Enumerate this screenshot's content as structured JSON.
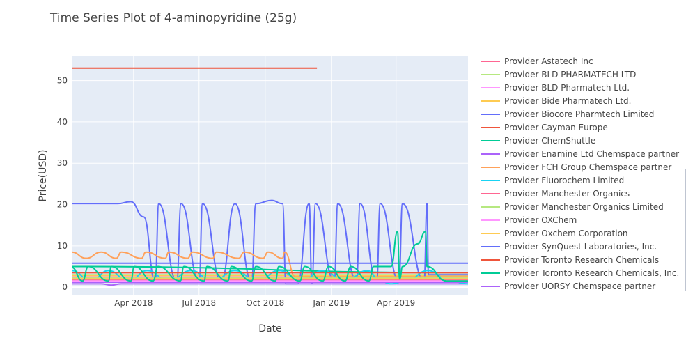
{
  "chart_data": {
    "type": "line",
    "title": "Time Series Plot of 4-aminopyridine (25g)",
    "xlabel": "Date",
    "ylabel": "Price(USD)",
    "x_range": [
      "2018-01-05",
      "2019-07-10"
    ],
    "ylim": [
      -2,
      56
    ],
    "x_ticks": [
      {
        "date": "2018-04-01",
        "label": "Apr 2018"
      },
      {
        "date": "2018-07-01",
        "label": "Jul 2018"
      },
      {
        "date": "2018-10-01",
        "label": "Oct 2018"
      },
      {
        "date": "2019-01-01",
        "label": "Jan 2019"
      },
      {
        "date": "2019-04-01",
        "label": "Apr 2019"
      }
    ],
    "y_ticks": [
      0,
      10,
      20,
      30,
      40,
      50
    ],
    "grid": true,
    "legend_position": "right",
    "plot_background": "#e5ecf6",
    "series": [
      {
        "name": "Provider Astatech Inc",
        "color": "#ff6692",
        "points": [
          [
            "2018-01-05",
            2.2
          ],
          [
            "2019-07-10",
            2.2
          ]
        ]
      },
      {
        "name": "Provider BLD PHARMATECH LTD",
        "color": "#b6e880",
        "points": [
          [
            "2018-01-05",
            3.0
          ],
          [
            "2019-07-10",
            3.0
          ]
        ]
      },
      {
        "name": "Provider BLD Pharmatech Ltd.",
        "color": "#ff97ff",
        "points": [
          [
            "2018-01-05",
            2.5
          ],
          [
            "2019-07-10",
            2.5
          ]
        ]
      },
      {
        "name": "Provider Bide Pharmatech Ltd.",
        "color": "#fecb52",
        "points": [
          [
            "2018-01-05",
            2.8
          ],
          [
            "2019-07-10",
            2.8
          ]
        ]
      },
      {
        "name": "Provider Biocore Pharmtech Limited",
        "color": "#636efa",
        "points": [
          [
            "2018-01-05",
            20.2
          ],
          [
            "2018-03-10",
            20.2
          ],
          [
            "2018-03-28",
            20.7
          ],
          [
            "2018-04-15",
            17
          ],
          [
            "2018-05-01",
            1.5
          ],
          [
            "2018-05-06",
            20.2
          ],
          [
            "2018-05-31",
            1.5
          ],
          [
            "2018-06-06",
            20.2
          ],
          [
            "2018-07-01",
            1.5
          ],
          [
            "2018-07-06",
            20.2
          ],
          [
            "2018-08-01",
            1.5
          ],
          [
            "2018-08-20",
            20.2
          ],
          [
            "2018-09-12",
            1.5
          ],
          [
            "2018-09-18",
            20.2
          ],
          [
            "2018-10-10",
            21.0
          ],
          [
            "2018-10-25",
            20.2
          ],
          [
            "2018-10-30",
            0.8
          ],
          [
            "2018-11-15",
            0.8
          ],
          [
            "2018-12-01",
            20.2
          ],
          [
            "2018-12-05",
            1.0
          ],
          [
            "2018-12-10",
            20.2
          ],
          [
            "2019-01-05",
            1.5
          ],
          [
            "2019-01-10",
            20.2
          ],
          [
            "2019-02-05",
            1.5
          ],
          [
            "2019-02-10",
            20.2
          ],
          [
            "2019-03-05",
            1.5
          ],
          [
            "2019-03-10",
            20.2
          ],
          [
            "2019-04-05",
            1.5
          ],
          [
            "2019-04-10",
            20.2
          ],
          [
            "2019-05-10",
            1.5
          ],
          [
            "2019-05-14",
            20.2
          ],
          [
            "2019-05-16",
            3.0
          ],
          [
            "2019-07-10",
            3.0
          ]
        ]
      },
      {
        "name": "Provider Cayman Europe",
        "color": "#ef553b",
        "points": [
          [
            "2018-01-05",
            53
          ],
          [
            "2018-12-12",
            53
          ]
        ]
      },
      {
        "name": "Provider ChemShuttle",
        "color": "#00cc96",
        "points": [
          [
            "2018-01-05",
            5.0
          ],
          [
            "2019-07-10",
            3.5
          ]
        ]
      },
      {
        "name": "Provider Enamine Ltd Chemspace partner",
        "color": "#ab63fa",
        "points": [
          [
            "2018-01-05",
            0.8
          ],
          [
            "2018-02-15",
            0.8
          ],
          [
            "2018-03-01",
            0.5
          ],
          [
            "2018-03-15",
            0.8
          ],
          [
            "2019-07-10",
            0.8
          ]
        ]
      },
      {
        "name": "Provider FCH Group Chemspace partner",
        "color": "#ffa15a",
        "points": [
          [
            "2018-01-05",
            8.5
          ],
          [
            "2018-01-25",
            7.0
          ],
          [
            "2018-02-15",
            8.5
          ],
          [
            "2018-03-08",
            7.0
          ],
          [
            "2018-03-15",
            8.5
          ],
          [
            "2018-04-12",
            7.0
          ],
          [
            "2018-04-18",
            8.5
          ],
          [
            "2018-05-15",
            7.0
          ],
          [
            "2018-05-20",
            8.5
          ],
          [
            "2018-06-15",
            7.0
          ],
          [
            "2018-06-22",
            8.5
          ],
          [
            "2018-07-20",
            7.0
          ],
          [
            "2018-07-25",
            8.5
          ],
          [
            "2018-08-25",
            7.0
          ],
          [
            "2018-09-02",
            8.5
          ],
          [
            "2018-09-28",
            7.0
          ],
          [
            "2018-10-05",
            8.5
          ],
          [
            "2018-10-25",
            7.0
          ],
          [
            "2018-10-28",
            8.5
          ],
          [
            "2018-11-12",
            2.5
          ],
          [
            "2019-07-10",
            2.5
          ]
        ]
      },
      {
        "name": "Provider Fluorochem Limited",
        "color": "#19d3f3",
        "points": [
          [
            "2018-01-05",
            4.0
          ],
          [
            "2018-02-01",
            1.5
          ],
          [
            "2018-02-25",
            4.0
          ],
          [
            "2018-03-25",
            1.5
          ],
          [
            "2018-04-20",
            4.0
          ],
          [
            "2018-05-20",
            1.5
          ],
          [
            "2018-06-20",
            4.0
          ],
          [
            "2018-07-20",
            1.5
          ],
          [
            "2018-08-20",
            4.0
          ],
          [
            "2018-09-20",
            1.5
          ],
          [
            "2018-10-20",
            4.0
          ],
          [
            "2018-11-20",
            1.5
          ],
          [
            "2018-12-20",
            4.0
          ],
          [
            "2019-01-20",
            1.5
          ],
          [
            "2019-02-20",
            4.0
          ],
          [
            "2019-03-10",
            1.5
          ],
          [
            "2019-03-25",
            0.8
          ],
          [
            "2019-04-15",
            1.5
          ],
          [
            "2019-05-15",
            4.0
          ],
          [
            "2019-06-15",
            1.5
          ],
          [
            "2019-07-10",
            0.8
          ]
        ]
      },
      {
        "name": "Provider Manchester Organics",
        "color": "#ff6692",
        "points": [
          [
            "2018-01-05",
            1.8
          ],
          [
            "2019-07-10",
            1.8
          ]
        ]
      },
      {
        "name": "Provider Manchester Organics Limited",
        "color": "#b6e880",
        "points": [
          [
            "2018-01-05",
            2.2
          ],
          [
            "2019-07-10",
            2.2
          ]
        ]
      },
      {
        "name": "Provider OXChem",
        "color": "#ff97ff",
        "points": [
          [
            "2018-01-05",
            1.5
          ],
          [
            "2019-07-10",
            1.5
          ]
        ]
      },
      {
        "name": "Provider Oxchem Corporation",
        "color": "#fecb52",
        "points": [
          [
            "2018-01-05",
            2.0
          ],
          [
            "2019-07-10",
            2.0
          ]
        ]
      },
      {
        "name": "Provider SynQuest Laboratories, Inc.",
        "color": "#636efa",
        "points": [
          [
            "2018-01-05",
            5.8
          ],
          [
            "2019-07-10",
            5.8
          ]
        ]
      },
      {
        "name": "Provider Toronto Research Chemicals",
        "color": "#ef553b",
        "points": [
          [
            "2018-01-05",
            3.5
          ],
          [
            "2019-07-10",
            3.5
          ]
        ]
      },
      {
        "name": "Provider Toronto Research Chemicals, Inc.",
        "color": "#00cc96",
        "points": [
          [
            "2018-01-05",
            4.8
          ],
          [
            "2018-01-20",
            1.5
          ],
          [
            "2018-01-28",
            5.0
          ],
          [
            "2018-02-25",
            1.5
          ],
          [
            "2018-03-01",
            5.0
          ],
          [
            "2018-03-28",
            1.5
          ],
          [
            "2018-04-02",
            5.0
          ],
          [
            "2018-04-28",
            1.5
          ],
          [
            "2018-05-05",
            5.0
          ],
          [
            "2018-06-05",
            1.5
          ],
          [
            "2018-06-10",
            5.0
          ],
          [
            "2018-07-08",
            1.5
          ],
          [
            "2018-07-12",
            5.0
          ],
          [
            "2018-08-10",
            1.5
          ],
          [
            "2018-08-15",
            5.0
          ],
          [
            "2018-09-12",
            1.5
          ],
          [
            "2018-09-18",
            5.0
          ],
          [
            "2018-10-15",
            1.5
          ],
          [
            "2018-10-20",
            5.0
          ],
          [
            "2018-11-18",
            1.5
          ],
          [
            "2018-11-25",
            5.0
          ],
          [
            "2018-12-20",
            1.5
          ],
          [
            "2018-12-28",
            5.0
          ],
          [
            "2019-01-20",
            1.5
          ],
          [
            "2019-01-28",
            5.0
          ],
          [
            "2019-02-22",
            1.5
          ],
          [
            "2019-03-01",
            5.0
          ],
          [
            "2019-03-25",
            5.0
          ],
          [
            "2019-04-03",
            13.5
          ],
          [
            "2019-04-06",
            2.0
          ],
          [
            "2019-04-10",
            5.0
          ],
          [
            "2019-05-01",
            10.5
          ],
          [
            "2019-05-12",
            13.5
          ],
          [
            "2019-05-14",
            5.0
          ],
          [
            "2019-06-10",
            1.5
          ],
          [
            "2019-07-10",
            1.5
          ]
        ]
      },
      {
        "name": "Provider UORSY Chemspace partner",
        "color": "#ab63fa",
        "points": [
          [
            "2018-01-05",
            1.2
          ],
          [
            "2019-07-10",
            1.2
          ]
        ]
      }
    ]
  }
}
